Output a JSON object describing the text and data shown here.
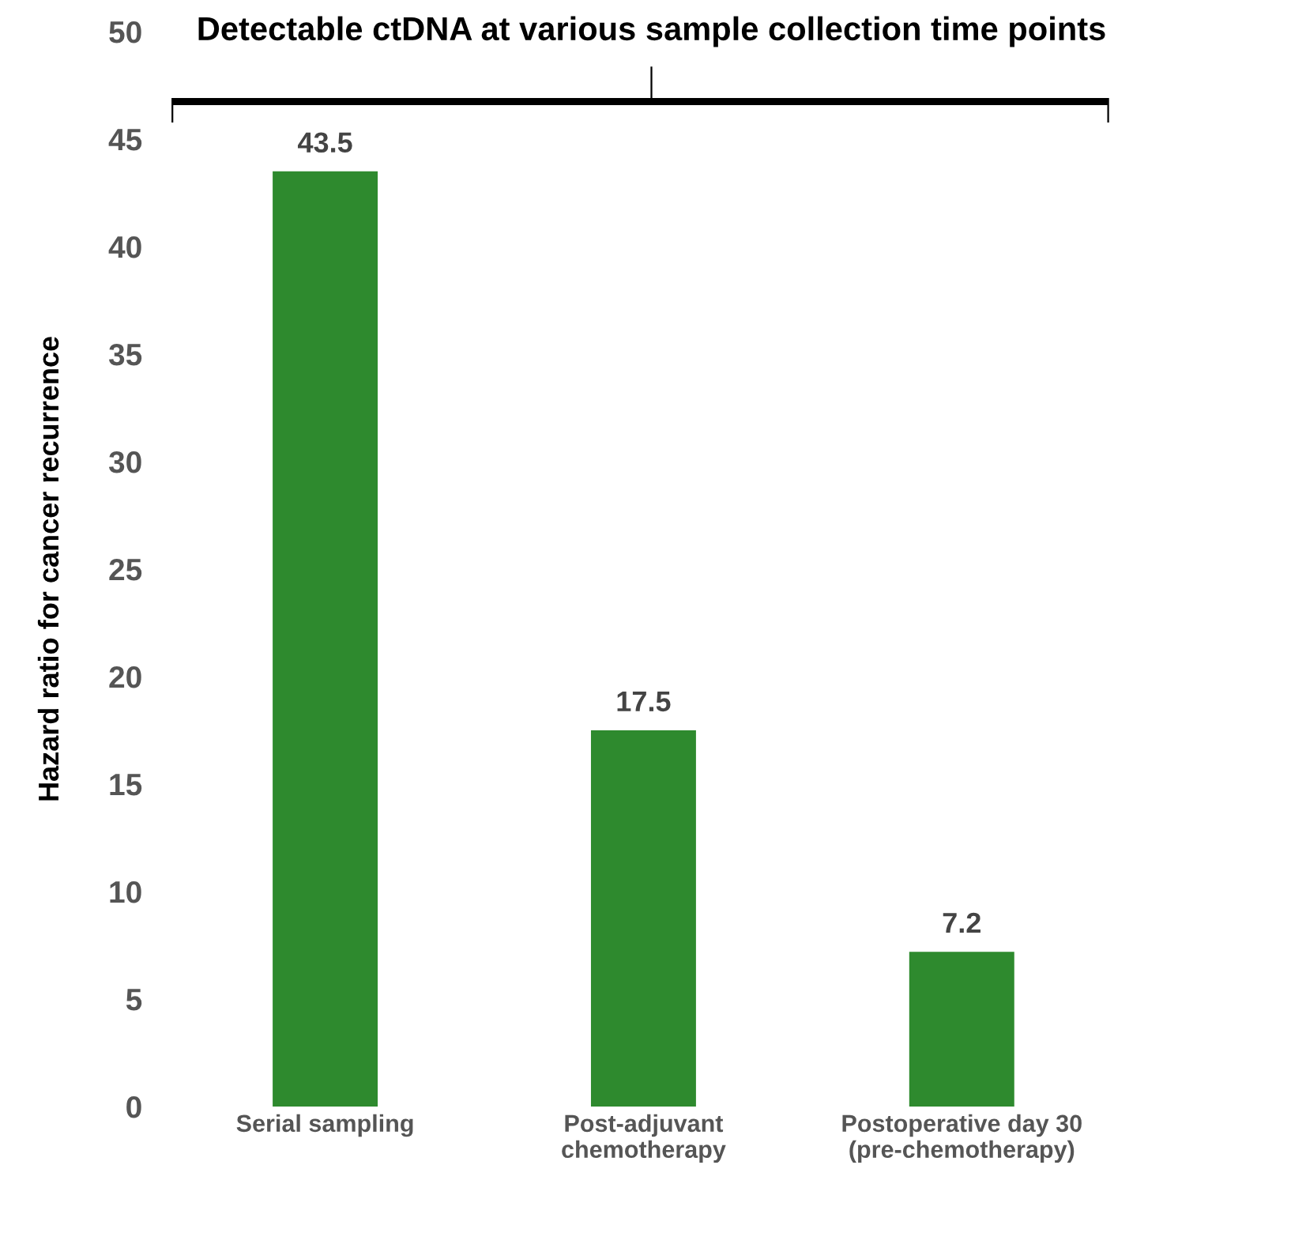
{
  "chart_data": {
    "type": "bar",
    "title": "Detectable ctDNA at various sample collection time points",
    "ylabel": "Hazard ratio for cancer recurrence",
    "categories": [
      "Serial sampling",
      "Post-adjuvant\nchemotherapy",
      "Postoperative day 30\n(pre-chemotherapy)"
    ],
    "values": [
      43.5,
      17.5,
      7.2
    ],
    "color": "#2e8a2e",
    "data_labels": true,
    "ylim": [
      0,
      50
    ],
    "yticks": [
      0,
      5,
      10,
      15,
      20,
      25,
      30,
      35,
      40,
      45,
      50
    ],
    "grid": false,
    "legend": false
  }
}
